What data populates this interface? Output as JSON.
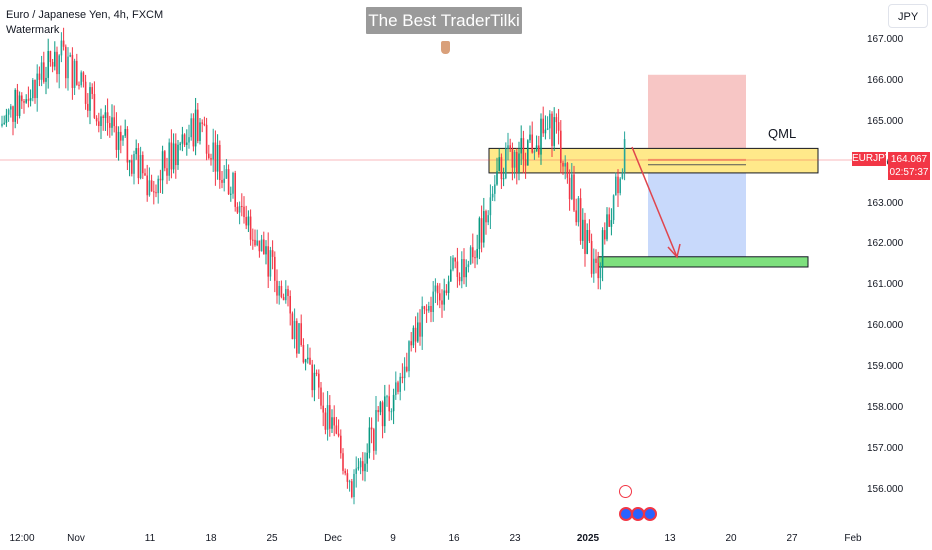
{
  "header": {
    "symbol_title": "Euro / Japanese Yen, 4h, FXCM",
    "watermark_label": "Watermark",
    "banner_text": "The Best TraderTilki"
  },
  "currency_button": "JPY",
  "price_scale": {
    "ticks": [
      "167.000",
      "166.000",
      "165.000",
      "164.000",
      "163.000",
      "162.000",
      "161.000",
      "160.000",
      "159.000",
      "158.000",
      "157.000",
      "156.000"
    ],
    "current_price": "164.067",
    "countdown": "02:57:37",
    "symbol_badge": "EURJPY"
  },
  "time_axis": {
    "ticks": [
      "12:00",
      "Nov",
      "11",
      "18",
      "25",
      "Dec",
      "9",
      "16",
      "23",
      "2025",
      "13",
      "20",
      "27",
      "Feb"
    ]
  },
  "annotations": {
    "qml_label": "QML"
  },
  "colors": {
    "up": "#089981",
    "down": "#f23645",
    "up_alt": "#26a69a",
    "qml_zone": "#ffe98a",
    "target_zone": "#7ee07e",
    "stop_zone": "#f7c6c5",
    "profit_zone": "#c8d9fb",
    "arrow": "#e0454d"
  },
  "chart_data": {
    "type": "candlestick",
    "ylim": [
      155.7,
      167.6
    ],
    "current_price": 164.067,
    "key_points": [
      {
        "t": "Oct 24",
        "price": 164.9
      },
      {
        "t": "Oct 31",
        "price": 166.7
      },
      {
        "t": "Nov 11",
        "price": 163.5
      },
      {
        "t": "Nov 18",
        "price": 165.0
      },
      {
        "t": "Nov 25",
        "price": 161.5
      },
      {
        "t": "Dec 3",
        "price": 156.2
      },
      {
        "t": "Dec 12",
        "price": 160.5
      },
      {
        "t": "Dec 20",
        "price": 162.0
      },
      {
        "t": "Dec 23",
        "price": 163.9
      },
      {
        "t": "Dec 30",
        "price": 164.9
      },
      {
        "t": "Jan 3",
        "price": 161.2
      },
      {
        "t": "Jan 7",
        "price": 164.3
      }
    ],
    "zones": [
      {
        "name": "QML",
        "top": 164.35,
        "bottom": 163.75
      },
      {
        "name": "target",
        "top": 161.7,
        "bottom": 161.45
      },
      {
        "name": "stop",
        "top": 166.15,
        "bottom": 164.1
      },
      {
        "name": "profit",
        "top": 163.95,
        "bottom": 161.45
      }
    ]
  }
}
